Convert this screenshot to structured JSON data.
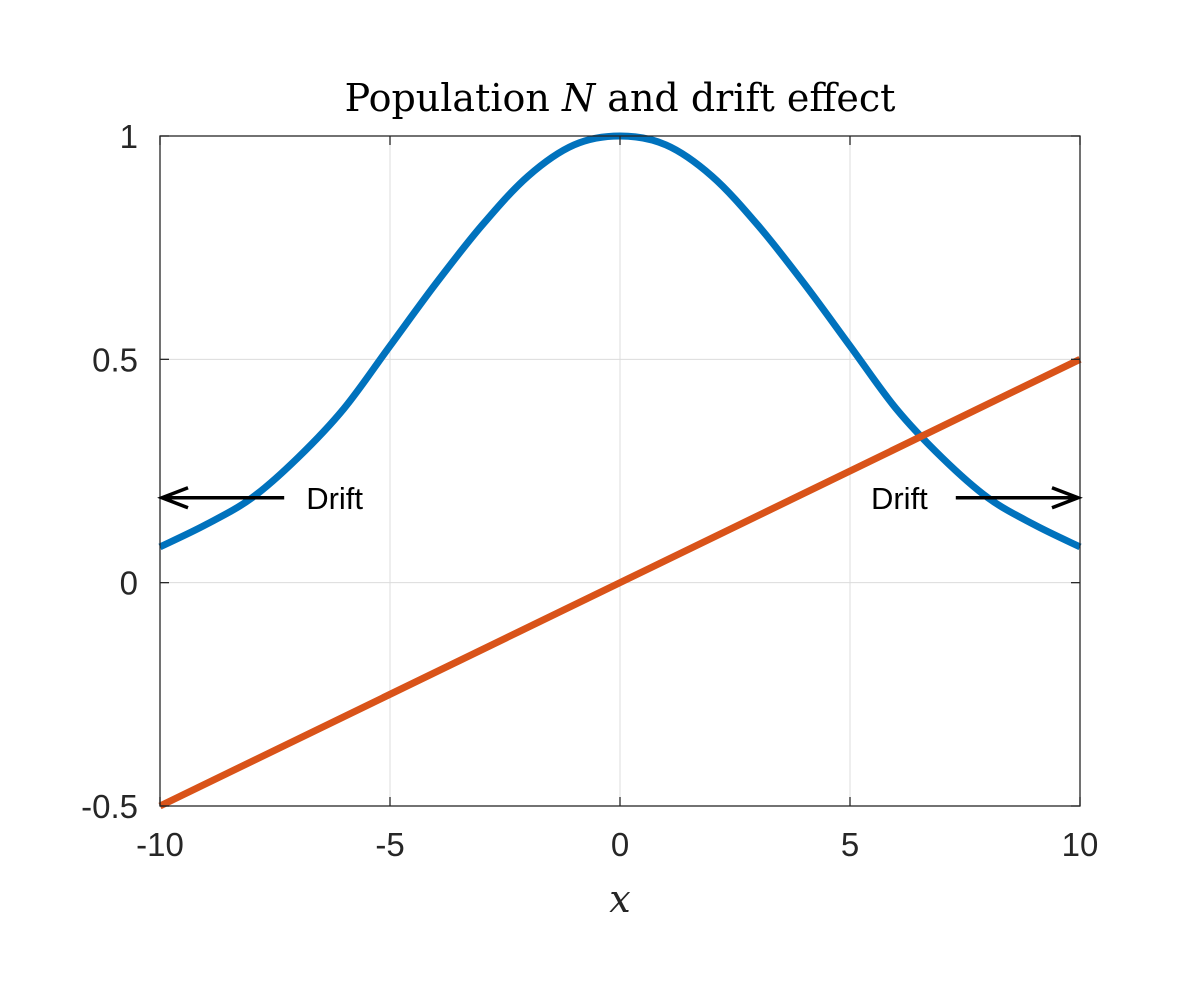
{
  "chart_data": {
    "type": "line",
    "title": "Population N and drift effect",
    "title_parts": {
      "prefix": "Population ",
      "symbol": "N",
      "suffix": " and drift effect"
    },
    "xlabel": "x",
    "ylabel": "",
    "xlim": [
      -10,
      10
    ],
    "ylim": [
      -0.5,
      1
    ],
    "x_ticks": [
      -10,
      -5,
      0,
      5,
      10
    ],
    "x_tick_labels": [
      "-10",
      "-5",
      "0",
      "5",
      "10"
    ],
    "y_ticks": [
      -0.5,
      0,
      0.5,
      1
    ],
    "y_tick_labels": [
      "-0.5",
      "0",
      "0.5",
      "1"
    ],
    "grid": true,
    "series": [
      {
        "color": "#0072BD",
        "x": [
          -10,
          -9,
          -8,
          -7,
          -6,
          -5,
          -4,
          -3,
          -2,
          -1,
          0,
          1,
          2,
          3,
          4,
          5,
          6,
          7,
          8,
          9,
          10
        ],
        "y": [
          0.08,
          0.13,
          0.19,
          0.28,
          0.39,
          0.53,
          0.67,
          0.8,
          0.91,
          0.98,
          1.0,
          0.98,
          0.91,
          0.8,
          0.67,
          0.53,
          0.39,
          0.28,
          0.19,
          0.13,
          0.08
        ]
      },
      {
        "color": "#D95319",
        "x": [
          -10,
          10
        ],
        "y": [
          -0.5,
          0.5
        ]
      }
    ],
    "annotations": [
      {
        "text": "Drift",
        "arrow": "left",
        "x_from": -7.3,
        "x_to": -10,
        "y": 0.19
      },
      {
        "text": "Drift",
        "arrow": "right",
        "x_from": 7.3,
        "x_to": 10,
        "y": 0.19
      }
    ]
  }
}
